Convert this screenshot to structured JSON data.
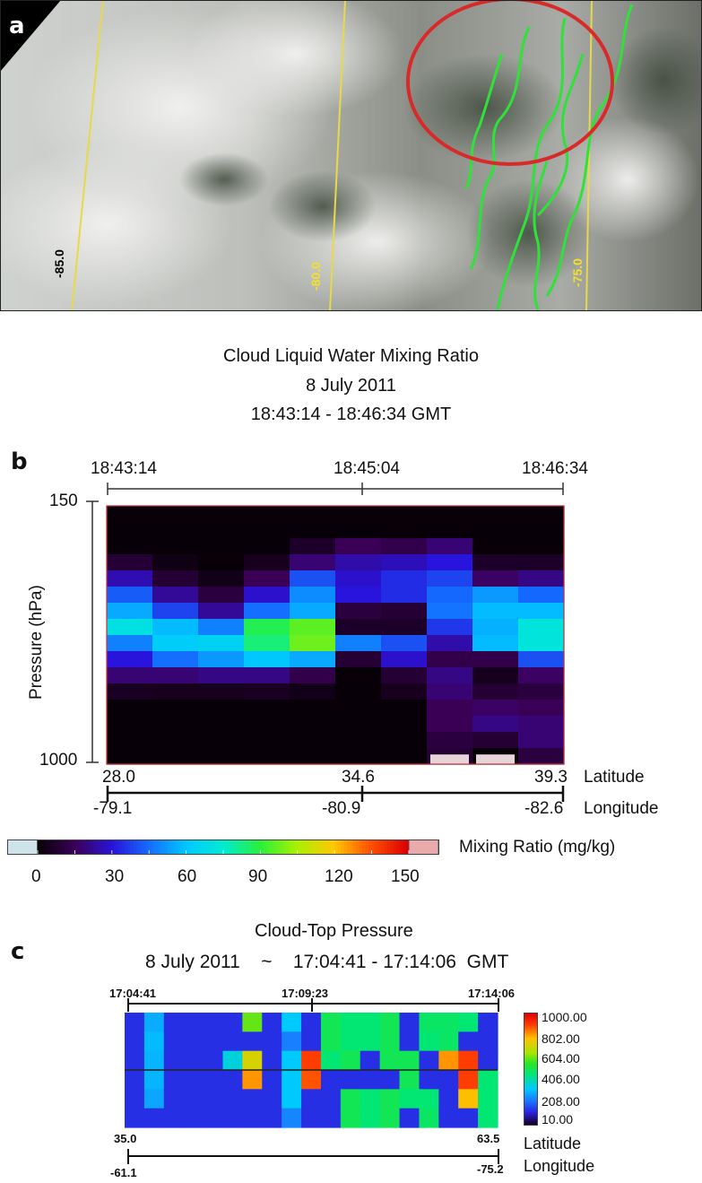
{
  "panel_a": {
    "letter": "a",
    "longitude_labels": [
      "-85.0",
      "-80.0",
      "-75.0"
    ]
  },
  "panel_b": {
    "letter": "b",
    "title_lines": [
      "Cloud Liquid Water Mixing Ratio",
      "8 July 2011",
      "18:43:14 - 18:46:34 GMT"
    ],
    "time_ticks": [
      "18:43:14",
      "18:45:04",
      "18:46:34"
    ],
    "ylabel": "Pressure (hPa)",
    "y_ticks": [
      "150",
      "1000"
    ],
    "latitude_ticks": [
      "28.0",
      "34.6",
      "39.3"
    ],
    "latitude_label": "Latitude",
    "longitude_ticks": [
      "-79.1",
      "-80.9",
      "-82.6"
    ],
    "longitude_label": "Longitude",
    "colorbar_label": "Mixing Ratio (mg/kg)",
    "colorbar_ticks": [
      "0",
      "30",
      "60",
      "90",
      "120",
      "150"
    ]
  },
  "panel_c": {
    "letter": "c",
    "title": "Cloud-Top Pressure",
    "subtitle_date": "8 July 2011",
    "subtitle_sep": "~",
    "subtitle_time": "17:04:41 - 17:14:06",
    "subtitle_zone": "GMT",
    "time_ticks": [
      "17:04:41",
      "17:09:23",
      "17:14:06"
    ],
    "latitude_ticks": [
      "35.0",
      "63.5"
    ],
    "latitude_label": "Latitude",
    "longitude_ticks": [
      "-61.1",
      "-75.2"
    ],
    "longitude_label": "Longitude",
    "colorbar_ticks": [
      "1000.00",
      "802.00",
      "604.00",
      "406.00",
      "208.00",
      "10.00"
    ]
  },
  "chart_data": [
    {
      "type": "heatmap",
      "title": "Cloud Liquid Water Mixing Ratio",
      "subtitle": "8 July 2011 18:43:14 - 18:46:34 GMT",
      "ylabel": "Pressure (hPa)",
      "ylim": [
        150,
        1000
      ],
      "colorbar": {
        "label": "Mixing Ratio (mg/kg)",
        "range": [
          0,
          150
        ]
      },
      "profiles": [
        [
          0,
          0,
          0,
          8,
          25,
          42,
          55,
          70,
          48,
          30,
          18,
          5,
          0,
          0,
          0,
          0
        ],
        [
          0,
          0,
          0,
          2,
          8,
          22,
          38,
          58,
          62,
          45,
          18,
          4,
          0,
          0,
          0,
          0
        ],
        [
          0,
          0,
          0,
          0,
          3,
          10,
          22,
          48,
          64,
          52,
          20,
          4,
          0,
          0,
          0,
          0
        ],
        [
          0,
          0,
          0,
          4,
          14,
          28,
          45,
          88,
          84,
          60,
          20,
          5,
          0,
          0,
          0,
          0
        ],
        [
          0,
          0,
          6,
          18,
          40,
          50,
          55,
          96,
          98,
          55,
          12,
          3,
          0,
          0,
          0,
          0
        ],
        [
          0,
          0,
          14,
          24,
          28,
          30,
          10,
          6,
          48,
          8,
          0,
          0,
          0,
          0,
          0,
          0
        ],
        [
          0,
          0,
          12,
          26,
          34,
          34,
          8,
          6,
          40,
          28,
          8,
          4,
          0,
          0,
          0,
          0
        ],
        [
          0,
          0,
          18,
          30,
          38,
          44,
          46,
          36,
          24,
          12,
          20,
          18,
          14,
          14,
          10,
          8
        ],
        [
          0,
          0,
          0,
          6,
          16,
          52,
          58,
          56,
          58,
          12,
          4,
          8,
          16,
          20,
          8,
          0
        ],
        [
          0,
          0,
          0,
          6,
          20,
          44,
          58,
          72,
          72,
          40,
          16,
          10,
          14,
          18,
          18,
          10
        ]
      ],
      "no_data_bins": [
        {
          "column": 7,
          "level": 15
        },
        {
          "column": 8,
          "level": 15
        }
      ]
    },
    {
      "type": "heatmap",
      "title": "Cloud-Top Pressure",
      "subtitle": "8 July 2011 17:04:41 - 17:14:06 GMT",
      "colorbar": {
        "range": [
          10,
          1000
        ]
      },
      "columns": [
        [
          130,
          130,
          130,
          130,
          130,
          130
        ],
        [
          290,
          310,
          300,
          300,
          280,
          130
        ],
        [
          130,
          130,
          130,
          130,
          130,
          130
        ],
        [
          130,
          130,
          130,
          130,
          130,
          130
        ],
        [
          130,
          130,
          130,
          130,
          130,
          130
        ],
        [
          130,
          130,
          360,
          130,
          130,
          130
        ],
        [
          600,
          130,
          720,
          820,
          130,
          130
        ],
        [
          130,
          130,
          130,
          130,
          130,
          130
        ],
        [
          330,
          230,
          330,
          330,
          330,
          240
        ],
        [
          130,
          130,
          900,
          880,
          130,
          130
        ],
        [
          500,
          500,
          460,
          130,
          130,
          130
        ],
        [
          460,
          460,
          500,
          130,
          500,
          500
        ],
        [
          460,
          460,
          130,
          130,
          460,
          460
        ],
        [
          500,
          500,
          500,
          130,
          500,
          500
        ],
        [
          130,
          130,
          500,
          500,
          460,
          130
        ],
        [
          480,
          460,
          130,
          130,
          460,
          480
        ],
        [
          480,
          480,
          820,
          130,
          130,
          130
        ],
        [
          460,
          130,
          900,
          900,
          780,
          130
        ],
        [
          130,
          130,
          130,
          460,
          460,
          460
        ]
      ]
    }
  ]
}
